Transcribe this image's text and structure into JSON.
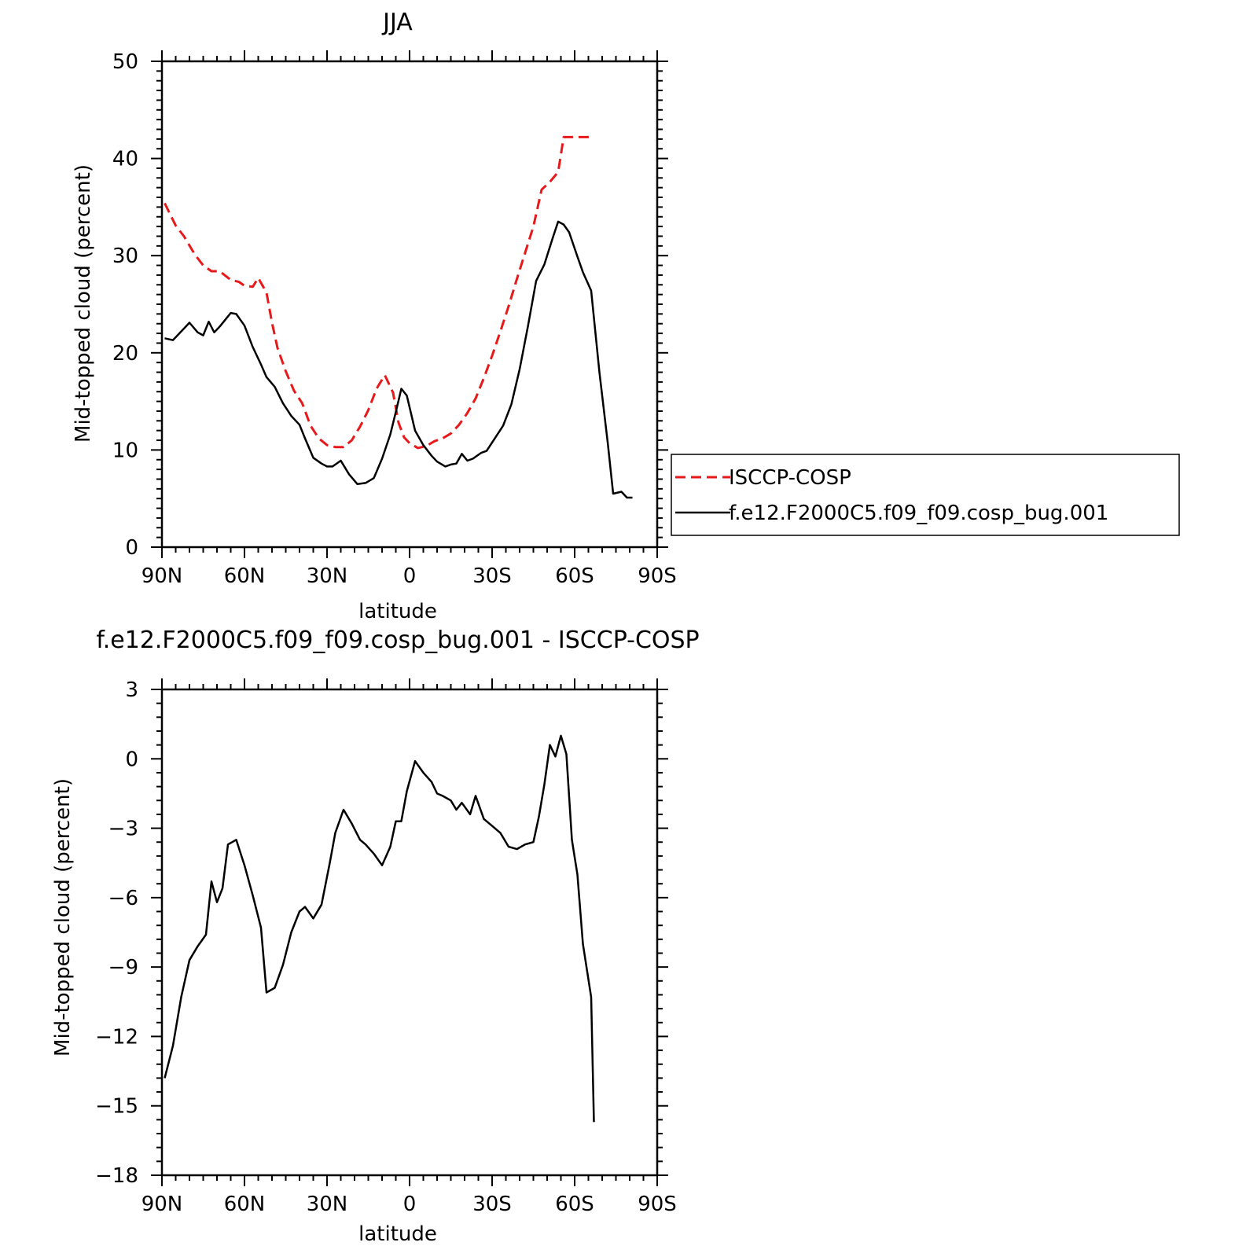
{
  "chart_data": [
    {
      "type": "line",
      "title": "JJA",
      "xlabel": "latitude",
      "ylabel": "Mid-topped cloud (percent)",
      "xlim": [
        -90,
        90
      ],
      "ylim": [
        0,
        50
      ],
      "xtick_values": [
        -90,
        -60,
        -30,
        0,
        30,
        60,
        90
      ],
      "xtick_labels": [
        "90N",
        "60N",
        "30N",
        "0",
        "30S",
        "60S",
        "90S"
      ],
      "ytick_values": [
        0,
        10,
        20,
        30,
        40,
        50
      ],
      "ytick_labels": [
        "0",
        "10",
        "20",
        "30",
        "40",
        "50"
      ],
      "grid": false,
      "legend_position": "right",
      "series": [
        {
          "name": "ISCCP-COSP",
          "color": "#e8191a",
          "dash": "dashed",
          "x": [
            -89,
            -85,
            -82,
            -78,
            -75,
            -72,
            -69,
            -65,
            -62,
            -60,
            -57,
            -55,
            -52,
            -50,
            -48,
            -45,
            -42,
            -39,
            -36,
            -33,
            -30,
            -27,
            -24,
            -21,
            -18,
            -15,
            -12,
            -9,
            -6,
            -4,
            -2,
            0,
            3,
            6,
            9,
            12,
            15,
            18,
            21,
            24,
            27,
            30,
            33,
            36,
            39,
            42,
            45,
            48,
            51,
            54,
            56,
            59,
            63,
            66
          ],
          "y": [
            35.4,
            33.1,
            32,
            30.1,
            29,
            28.4,
            28.4,
            27.5,
            27.3,
            26.9,
            26.8,
            27.7,
            26.2,
            23.1,
            20.5,
            18.1,
            16.1,
            14.8,
            12.5,
            11.2,
            10.5,
            10.3,
            10.3,
            11,
            12.4,
            14.1,
            16.3,
            17.7,
            15.9,
            12.8,
            11.3,
            10.7,
            10.2,
            10.4,
            10.9,
            11.2,
            11.7,
            12.6,
            13.8,
            15.3,
            17.4,
            19.7,
            22.2,
            24.8,
            27.6,
            30.3,
            33,
            36.8,
            37.6,
            38.6,
            42.2,
            42.2,
            42.2,
            42.2
          ]
        },
        {
          "name": "f.e12.F2000C5.f09_f09.cosp_bug.001",
          "color": "#000000",
          "dash": "solid",
          "x": [
            -89,
            -86,
            -83,
            -80,
            -77,
            -75,
            -73,
            -71,
            -69,
            -67,
            -65,
            -63,
            -60,
            -57,
            -54,
            -52,
            -49,
            -46,
            -43,
            -40,
            -38,
            -35,
            -32,
            -30,
            -28,
            -25,
            -22,
            -19,
            -16,
            -13,
            -10,
            -7,
            -5,
            -3,
            -1,
            2,
            5,
            8,
            10,
            13,
            15,
            17,
            19,
            21,
            23,
            26,
            28,
            31,
            34,
            37,
            40,
            43,
            46,
            49,
            52,
            54,
            56,
            58,
            61,
            63,
            66,
            69,
            72,
            74,
            77,
            79,
            81
          ],
          "y": [
            21.5,
            21.3,
            22.2,
            23.1,
            22.1,
            21.8,
            23.2,
            22.1,
            22.7,
            23.4,
            24.1,
            24,
            22.8,
            20.6,
            18.8,
            17.5,
            16.5,
            14.8,
            13.5,
            12.6,
            11.2,
            9.2,
            8.6,
            8.3,
            8.3,
            8.9,
            7.5,
            6.5,
            6.6,
            7.1,
            9.1,
            11.6,
            13.9,
            16.3,
            15.6,
            12,
            10.5,
            9.4,
            8.8,
            8.3,
            8.5,
            8.6,
            9.6,
            8.9,
            9.1,
            9.7,
            9.9,
            11.2,
            12.5,
            14.7,
            18.3,
            22.7,
            27.4,
            29.1,
            31.8,
            33.5,
            33.2,
            32.4,
            29.9,
            28.3,
            26.4,
            18,
            10.8,
            5.5,
            5.7,
            5.1,
            5.1
          ]
        }
      ]
    },
    {
      "type": "line",
      "title": "f.e12.F2000C5.f09_f09.cosp_bug.001 - ISCCP-COSP",
      "xlabel": "latitude",
      "ylabel": "Mid-topped cloud (percent)",
      "xlim": [
        -90,
        90
      ],
      "ylim": [
        -18,
        3
      ],
      "xtick_values": [
        -90,
        -60,
        -30,
        0,
        30,
        60,
        90
      ],
      "xtick_labels": [
        "90N",
        "60N",
        "30N",
        "0",
        "30S",
        "60S",
        "90S"
      ],
      "ytick_values": [
        -18,
        -15,
        -12,
        -9,
        -6,
        -3,
        0,
        3
      ],
      "ytick_labels": [
        "−18",
        "−15",
        "−12",
        "−9",
        "−6",
        "−3",
        "0",
        "3"
      ],
      "grid": false,
      "series": [
        {
          "color": "#000000",
          "dash": "solid",
          "x": [
            -89,
            -86,
            -83,
            -80,
            -77,
            -74,
            -72,
            -70,
            -68,
            -66,
            -63,
            -60,
            -57,
            -54,
            -52,
            -49,
            -46,
            -43,
            -40,
            -38,
            -35,
            -32,
            -29,
            -27,
            -24,
            -21,
            -18,
            -16,
            -13,
            -10,
            -7,
            -5,
            -3,
            -1,
            2,
            5,
            8,
            10,
            12,
            15,
            17,
            19,
            22,
            24,
            27,
            30,
            33,
            36,
            39,
            42,
            45,
            47,
            49,
            51,
            53,
            55,
            57,
            59,
            61,
            63,
            66,
            67
          ],
          "y": [
            -13.8,
            -12.4,
            -10.3,
            -8.7,
            -8.1,
            -7.6,
            -5.3,
            -6.2,
            -5.6,
            -3.7,
            -3.5,
            -4.6,
            -5.9,
            -7.3,
            -10.1,
            -9.9,
            -8.9,
            -7.5,
            -6.6,
            -6.4,
            -6.9,
            -6.3,
            -4.5,
            -3.2,
            -2.2,
            -2.8,
            -3.5,
            -3.7,
            -4.1,
            -4.6,
            -3.8,
            -2.7,
            -2.7,
            -1.4,
            -0.1,
            -0.6,
            -1,
            -1.5,
            -1.6,
            -1.8,
            -2.2,
            -1.9,
            -2.4,
            -1.6,
            -2.6,
            -2.9,
            -3.2,
            -3.8,
            -3.9,
            -3.7,
            -3.6,
            -2.5,
            -1.1,
            0.6,
            0.1,
            1,
            0.2,
            -3.5,
            -5,
            -8,
            -10.3,
            -15.7
          ]
        }
      ]
    }
  ]
}
